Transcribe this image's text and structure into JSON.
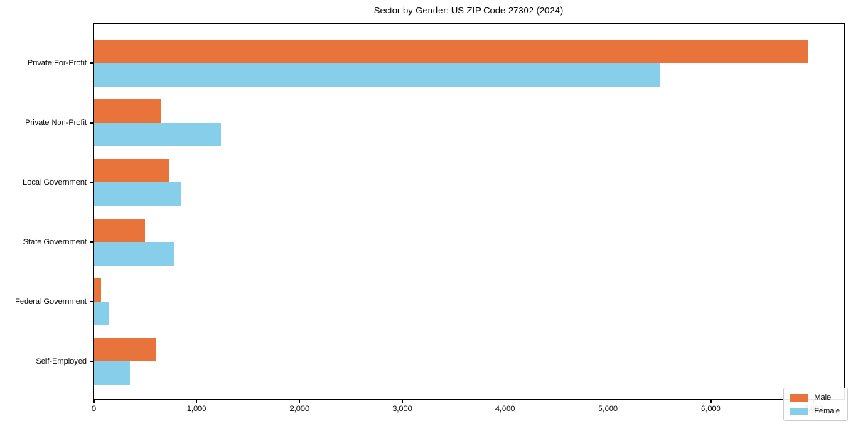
{
  "chart_data": {
    "type": "bar",
    "orientation": "horizontal",
    "title": "Sector by Gender: US ZIP Code 27302 (2024)",
    "categories": [
      "Private For-Profit",
      "Private Non-Profit",
      "Local Government",
      "State Government",
      "Federal Government",
      "Self-Employed"
    ],
    "series": [
      {
        "name": "Male",
        "color": "#E8743B",
        "values": [
          6940,
          650,
          730,
          500,
          70,
          610
        ]
      },
      {
        "name": "Female",
        "color": "#87CEEB",
        "values": [
          5500,
          1240,
          850,
          780,
          150,
          350
        ]
      }
    ],
    "xlabel": "",
    "ylabel": "",
    "xlim": [
      0,
      7300
    ],
    "xticks": [
      0,
      1000,
      2000,
      3000,
      4000,
      5000,
      6000,
      7000
    ],
    "grid": false,
    "legend_position": "lower right",
    "spine_color": "#000000",
    "background_color": "#ffffff"
  }
}
